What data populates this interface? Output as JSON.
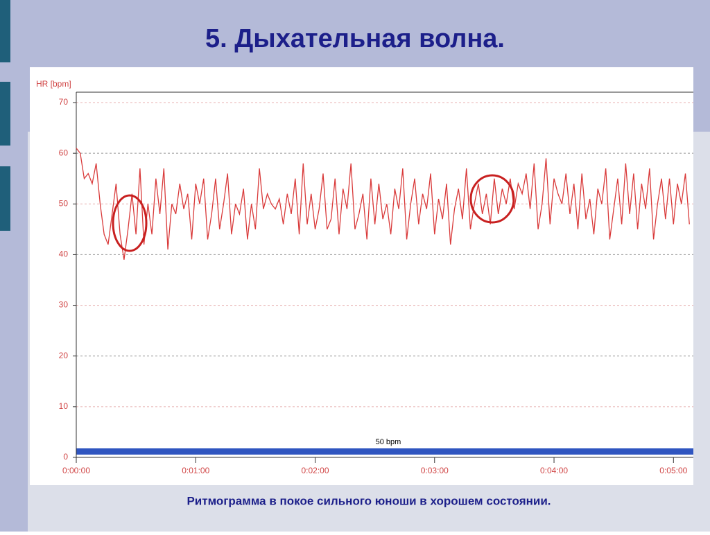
{
  "chart_data": {
    "type": "line",
    "title": "5. Дыхательная волна.",
    "y_label": "HR [bpm]",
    "caption": "Ритмограмма в покое сильного юноши в хорошем состоянии.",
    "annotation": "50 bpm",
    "x": [
      0,
      2,
      4,
      6,
      8,
      10,
      12,
      14,
      16,
      18,
      20,
      22,
      24,
      26,
      28,
      30,
      32,
      34,
      36,
      38,
      40,
      42,
      44,
      46,
      48,
      50,
      52,
      54,
      56,
      58,
      60,
      62,
      64,
      66,
      68,
      70,
      72,
      74,
      76,
      78,
      80,
      82,
      84,
      86,
      88,
      90,
      92,
      94,
      96,
      98,
      100,
      102,
      104,
      106,
      108,
      110,
      112,
      114,
      116,
      118,
      120,
      122,
      124,
      126,
      128,
      130,
      132,
      134,
      136,
      138,
      140,
      142,
      144,
      146,
      148,
      150,
      152,
      154,
      156,
      158,
      160,
      162,
      164,
      166,
      168,
      170,
      172,
      174,
      176,
      178,
      180,
      182,
      184,
      186,
      188,
      190,
      192,
      194,
      196,
      198,
      200,
      202,
      204,
      206,
      208,
      210,
      212,
      214,
      216,
      218,
      220,
      222,
      224,
      226,
      228,
      230,
      232,
      234,
      236,
      238,
      240,
      242,
      244,
      246,
      248,
      250,
      252,
      254,
      256,
      258,
      260,
      262,
      264,
      266,
      268,
      270,
      272,
      274,
      276,
      278,
      280,
      282,
      284,
      286,
      288,
      290,
      292,
      294,
      296,
      298,
      300,
      302,
      304,
      306,
      308
    ],
    "series": [
      {
        "name": "HR",
        "color": "#d93a3a",
        "values": [
          61,
          60,
          55,
          56,
          54,
          58,
          50,
          44,
          42,
          48,
          54,
          44,
          39,
          45,
          52,
          44,
          57,
          42,
          50,
          44,
          55,
          48,
          57,
          41,
          50,
          48,
          54,
          49,
          52,
          43,
          54,
          50,
          55,
          43,
          48,
          55,
          45,
          50,
          56,
          44,
          50,
          48,
          53,
          43,
          50,
          45,
          57,
          49,
          52,
          50,
          49,
          51,
          46,
          52,
          48,
          55,
          44,
          58,
          46,
          52,
          45,
          49,
          56,
          45,
          47,
          55,
          44,
          53,
          49,
          58,
          45,
          48,
          52,
          43,
          55,
          46,
          54,
          47,
          50,
          44,
          53,
          49,
          57,
          43,
          50,
          55,
          46,
          52,
          49,
          56,
          44,
          51,
          47,
          54,
          42,
          49,
          53,
          47,
          57,
          45,
          50,
          54,
          48,
          52,
          46,
          55,
          48,
          53,
          50,
          55,
          49,
          54,
          52,
          56,
          49,
          58,
          45,
          50,
          59,
          46,
          55,
          52,
          50,
          56,
          48,
          54,
          45,
          56,
          47,
          51,
          44,
          53,
          50,
          57,
          43,
          49,
          55,
          46,
          58,
          48,
          56,
          45,
          54,
          49,
          57,
          43,
          50,
          55,
          47,
          55,
          46,
          54,
          50,
          56,
          46
        ]
      }
    ],
    "xlim": [
      0,
      310
    ],
    "xticks": [
      {
        "value": 0,
        "label": "0:00:00"
      },
      {
        "value": 60,
        "label": "0:01:00"
      },
      {
        "value": 120,
        "label": "0:02:00"
      },
      {
        "value": 180,
        "label": "0:03:00"
      },
      {
        "value": 240,
        "label": "0:04:00"
      },
      {
        "value": 300,
        "label": "0:05:00"
      }
    ],
    "ylim": [
      0,
      70
    ],
    "yticks": [
      0,
      10,
      20,
      30,
      40,
      50,
      60,
      70
    ],
    "grid": true
  }
}
